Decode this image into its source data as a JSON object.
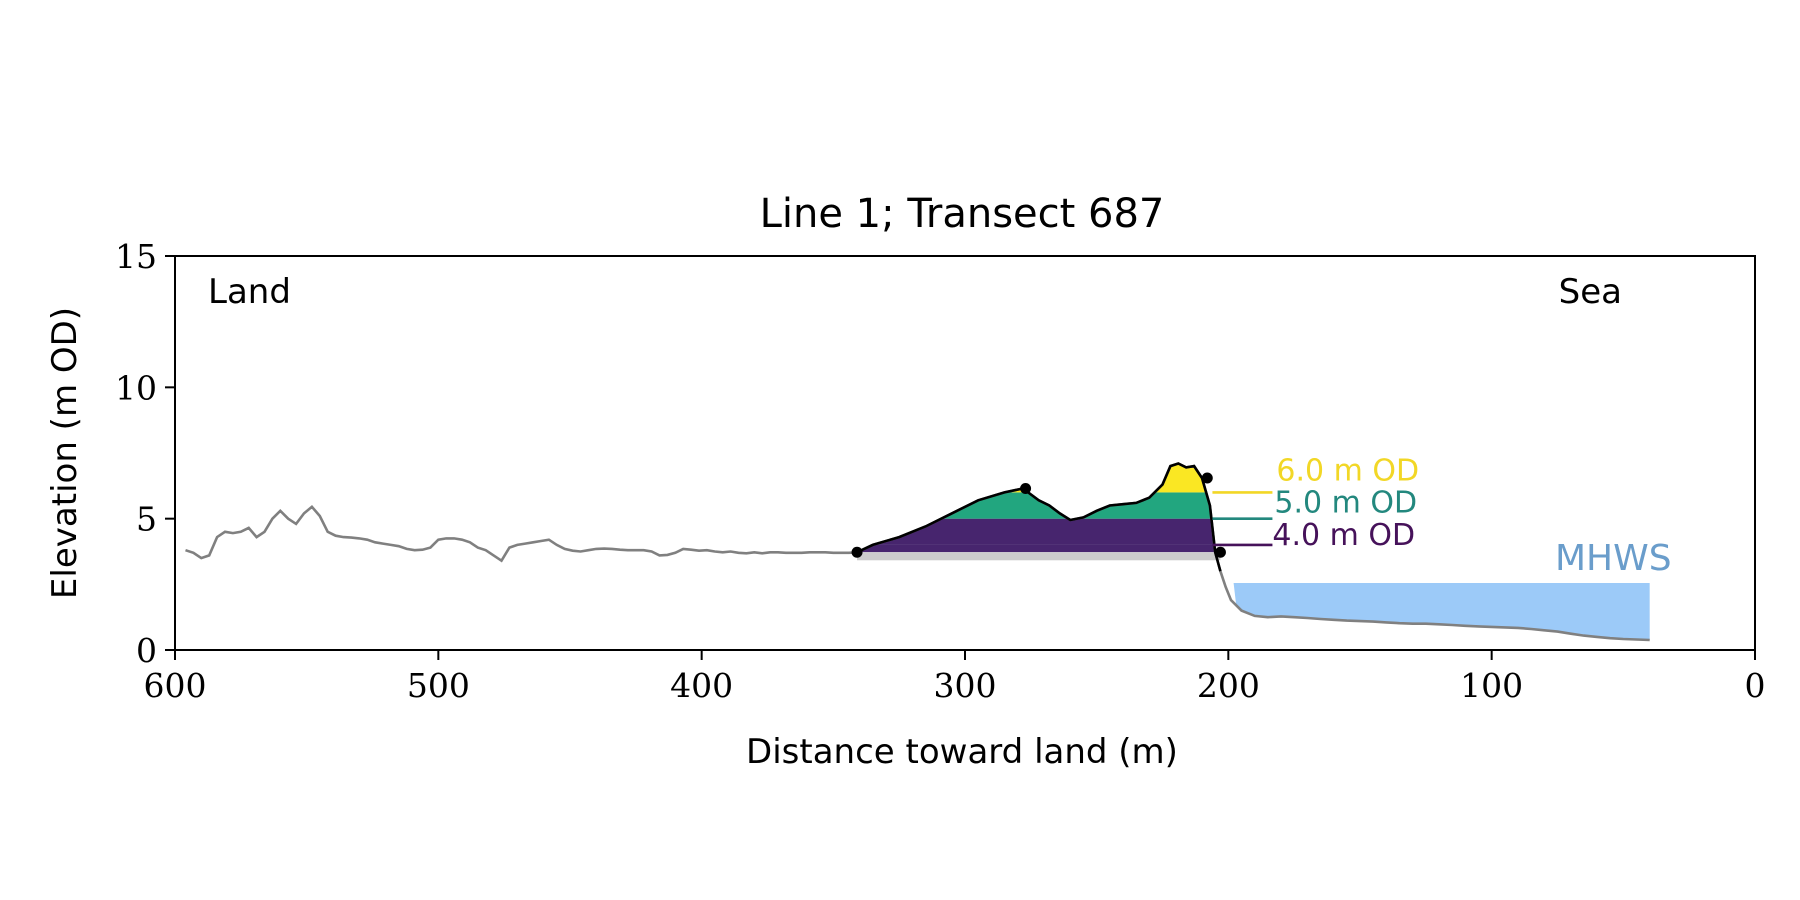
{
  "chart_data": {
    "type": "area",
    "title": "Line 1; Transect 687",
    "xlabel": "Distance toward land (m)",
    "ylabel": "Elevation (m OD)",
    "xlim": [
      600,
      0
    ],
    "ylim": [
      0,
      15
    ],
    "x_ticks": [
      600,
      500,
      400,
      300,
      200,
      100,
      0
    ],
    "y_ticks": [
      0,
      5,
      10,
      15
    ],
    "grid": false,
    "annotations": {
      "left": "Land",
      "right": "Sea"
    },
    "profile": {
      "x": [
        596,
        593,
        590,
        587,
        584,
        581,
        578,
        575,
        572,
        569,
        566,
        563,
        560,
        557,
        554,
        551,
        548,
        545,
        542,
        539,
        536,
        533,
        530,
        527,
        524,
        521,
        518,
        515,
        512,
        509,
        506,
        503,
        500,
        497,
        494,
        491,
        488,
        485,
        482,
        479,
        476,
        473,
        470,
        467,
        464,
        461,
        458,
        455,
        452,
        449,
        446,
        443,
        440,
        437,
        434,
        431,
        428,
        425,
        422,
        419,
        416,
        413,
        410,
        407,
        404,
        401,
        398,
        395,
        392,
        389,
        386,
        383,
        380,
        377,
        374,
        371,
        368,
        365,
        362,
        359,
        356,
        353,
        350,
        347,
        344,
        341,
        335,
        325,
        315,
        305,
        295,
        285,
        278,
        272,
        268,
        264,
        260,
        255,
        250,
        245,
        240,
        235,
        230,
        225,
        222,
        219,
        216,
        213,
        210,
        207,
        205,
        203,
        201,
        199,
        197,
        195,
        190,
        185,
        180,
        175,
        170,
        165,
        160,
        155,
        150,
        145,
        140,
        135,
        130,
        125,
        120,
        115,
        110,
        105,
        100,
        95,
        90,
        85,
        80,
        75,
        70,
        65,
        60,
        55,
        50,
        45,
        40
      ],
      "y": [
        3.8,
        3.7,
        3.5,
        3.6,
        4.3,
        4.5,
        4.45,
        4.5,
        4.65,
        4.3,
        4.5,
        5.0,
        5.3,
        5.0,
        4.8,
        5.2,
        5.45,
        5.1,
        4.5,
        4.35,
        4.3,
        4.28,
        4.25,
        4.2,
        4.1,
        4.05,
        4.0,
        3.95,
        3.85,
        3.8,
        3.82,
        3.9,
        4.2,
        4.25,
        4.25,
        4.2,
        4.1,
        3.9,
        3.8,
        3.6,
        3.4,
        3.9,
        4.0,
        4.05,
        4.1,
        4.15,
        4.2,
        4.0,
        3.85,
        3.78,
        3.75,
        3.8,
        3.85,
        3.86,
        3.85,
        3.82,
        3.8,
        3.8,
        3.8,
        3.75,
        3.6,
        3.62,
        3.7,
        3.85,
        3.82,
        3.78,
        3.8,
        3.75,
        3.72,
        3.75,
        3.7,
        3.68,
        3.72,
        3.68,
        3.72,
        3.72,
        3.7,
        3.7,
        3.7,
        3.72,
        3.72,
        3.72,
        3.7,
        3.7,
        3.7,
        3.72,
        4.0,
        4.3,
        4.7,
        5.2,
        5.7,
        6.0,
        6.15,
        5.7,
        5.5,
        5.2,
        4.95,
        5.05,
        5.3,
        5.5,
        5.55,
        5.6,
        5.8,
        6.3,
        7.0,
        7.1,
        6.95,
        7.0,
        6.55,
        5.5,
        3.72,
        3.0,
        2.4,
        1.9,
        1.7,
        1.5,
        1.3,
        1.25,
        1.28,
        1.25,
        1.22,
        1.18,
        1.15,
        1.12,
        1.1,
        1.08,
        1.05,
        1.02,
        1.0,
        1.0,
        0.98,
        0.95,
        0.92,
        0.9,
        0.88,
        0.86,
        0.84,
        0.8,
        0.75,
        0.7,
        0.62,
        0.55,
        0.5,
        0.45,
        0.42,
        0.4,
        0.38
      ]
    },
    "dune": {
      "crest": {
        "x": 277,
        "y": 6.15
      },
      "toe": {
        "x": 341,
        "y": 3.72
      },
      "seaward": {
        "x": 203,
        "y": 3.72
      },
      "top": {
        "x": 208,
        "y": 6.55
      },
      "base_elevation": 3.72
    },
    "thresholds": [
      {
        "level": 4.0,
        "label": "4.0 m OD",
        "color": "#46125a"
      },
      {
        "level": 5.0,
        "label": "5.0 m OD",
        "color": "#23887e"
      },
      {
        "level": 6.0,
        "label": "6.0 m OD",
        "color": "#f2d726"
      }
    ],
    "band_colors": {
      "base": "#cccccc",
      "below_4": "#47256e",
      "4_to_5": "#47256e",
      "5_to_6": "#22a67f",
      "above_6": "#fae723"
    },
    "mhws": {
      "label": "MHWS",
      "level": 2.55,
      "x_range": [
        198,
        40
      ],
      "color": "#9ccaf8",
      "label_color": "#6a9dcb"
    }
  }
}
